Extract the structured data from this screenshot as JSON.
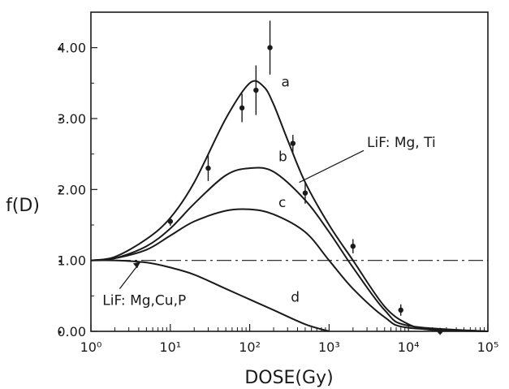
{
  "chart_data": {
    "type": "line",
    "title": "",
    "xlabel": "DOSE(Gy)",
    "ylabel": "f(D)",
    "x_scale": "log",
    "xlim": [
      1,
      100000
    ],
    "ylim": [
      0,
      4.5
    ],
    "grid": false,
    "x_tick_labels": [
      "10⁰",
      "10¹",
      "10²",
      "10³",
      "10⁴",
      "10⁵"
    ],
    "x_tick_values": [
      1,
      10,
      100,
      1000,
      10000,
      100000
    ],
    "y_tick_labels": [
      "0.00",
      "1.00",
      "2.00",
      "3.00",
      "4.00"
    ],
    "y_tick_values": [
      0,
      1,
      2,
      3,
      4
    ],
    "series": [
      {
        "name": "a",
        "x": [
          1,
          2,
          5,
          10,
          20,
          50,
          100,
          150,
          200,
          300,
          500,
          1000,
          2000,
          5000,
          10000,
          20000,
          100000
        ],
        "y": [
          1.0,
          1.05,
          1.3,
          1.6,
          2.1,
          3.0,
          3.5,
          3.45,
          3.2,
          2.7,
          2.1,
          1.5,
          1.0,
          0.35,
          0.1,
          0.02,
          0.0
        ]
      },
      {
        "name": "b",
        "x": [
          1,
          2,
          5,
          10,
          20,
          50,
          100,
          200,
          500,
          1000,
          2000,
          5000,
          10000,
          100000
        ],
        "y": [
          1.0,
          1.03,
          1.2,
          1.45,
          1.8,
          2.2,
          2.3,
          2.25,
          1.85,
          1.4,
          0.9,
          0.3,
          0.08,
          0.0
        ]
      },
      {
        "name": "c",
        "x": [
          1,
          2,
          5,
          10,
          20,
          50,
          100,
          200,
          500,
          1000,
          2000,
          5000,
          10000,
          100000
        ],
        "y": [
          1.0,
          1.03,
          1.15,
          1.35,
          1.55,
          1.7,
          1.72,
          1.65,
          1.4,
          1.0,
          0.6,
          0.2,
          0.05,
          0.0
        ]
      },
      {
        "name": "d",
        "x": [
          1,
          2,
          5,
          10,
          20,
          50,
          100,
          200,
          500,
          1000
        ],
        "y": [
          1.0,
          1.0,
          0.97,
          0.9,
          0.8,
          0.6,
          0.45,
          0.3,
          0.1,
          0.0
        ]
      }
    ],
    "reference_line": {
      "y": 1.0,
      "style": "dash-dot"
    },
    "measurements": [
      {
        "x": 10,
        "y": 1.55,
        "err": 0.06
      },
      {
        "x": 30,
        "y": 2.3,
        "err": 0.18
      },
      {
        "x": 80,
        "y": 3.15,
        "err": 0.2
      },
      {
        "x": 120,
        "y": 3.4,
        "err": 0.35
      },
      {
        "x": 180,
        "y": 4.0,
        "err": 0.38
      },
      {
        "x": 350,
        "y": 2.65,
        "err": 0.12
      },
      {
        "x": 500,
        "y": 1.95,
        "err": 0.15
      },
      {
        "x": 2000,
        "y": 1.2,
        "err": 0.1
      },
      {
        "x": 8000,
        "y": 0.3,
        "err": 0.08
      },
      {
        "x": 25000,
        "y": 0.0,
        "err": 0.05
      }
    ],
    "annotations": [
      {
        "text": "a",
        "x": 250,
        "y": 3.45
      },
      {
        "text": "b",
        "x": 230,
        "y": 2.4
      },
      {
        "text": "c",
        "x": 230,
        "y": 1.75
      },
      {
        "text": "d",
        "x": 330,
        "y": 0.42
      },
      {
        "text": "LiF: Mg, Ti",
        "x": 3000,
        "y": 2.6
      },
      {
        "text": "LiF: Mg,Cu,P",
        "x": 1.4,
        "y": 0.37
      }
    ],
    "colors": {
      "ink": "#1a1a1a",
      "background": "#ffffff"
    }
  }
}
